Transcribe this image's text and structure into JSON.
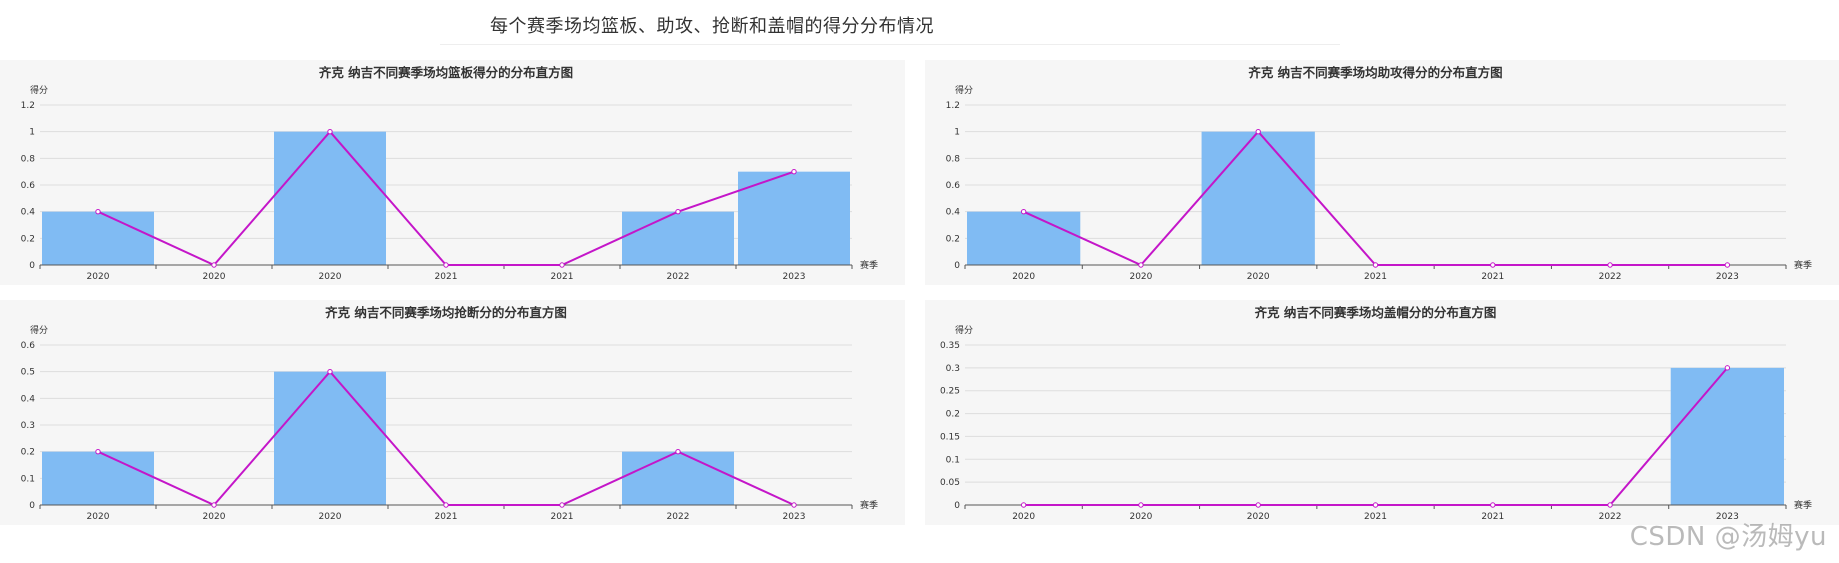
{
  "page": {
    "title": "每个赛季场均篮板、助攻、抢断和盖帽的得分分布情况"
  },
  "watermark": "CSDN @汤姆yu",
  "colors": {
    "bar": "#80bbf3",
    "line": "#c416c9",
    "axis": "#555555",
    "grid": "#dddddd"
  },
  "chart_data": [
    {
      "type": "bar",
      "title": "齐克 纳吉不同赛季场均篮板得分的分布直方图",
      "xlabel": "赛季",
      "ylabel": "得分",
      "categories": [
        "2020",
        "2020",
        "2020",
        "2021",
        "2021",
        "2022",
        "2023"
      ],
      "yticks": [
        "0",
        "0.2",
        "0.4",
        "0.6",
        "0.8",
        "1",
        "1.2"
      ],
      "ylim": [
        0,
        1.2
      ],
      "series": [
        {
          "type": "bar",
          "values": [
            0.4,
            0,
            1,
            0,
            0,
            0.4,
            0.7
          ]
        },
        {
          "type": "line",
          "values": [
            0.4,
            0,
            1,
            0,
            0,
            0.4,
            0.7
          ]
        }
      ]
    },
    {
      "type": "bar",
      "title": "齐克 纳吉不同赛季场均助攻得分的分布直方图",
      "xlabel": "赛季",
      "ylabel": "得分",
      "categories": [
        "2020",
        "2020",
        "2020",
        "2021",
        "2021",
        "2022",
        "2023"
      ],
      "yticks": [
        "0",
        "0.2",
        "0.4",
        "0.6",
        "0.8",
        "1",
        "1.2"
      ],
      "ylim": [
        0,
        1.2
      ],
      "series": [
        {
          "type": "bar",
          "values": [
            0.4,
            0,
            1,
            0,
            0,
            0,
            0
          ]
        },
        {
          "type": "line",
          "values": [
            0.4,
            0,
            1,
            0,
            0,
            0,
            0
          ]
        }
      ]
    },
    {
      "type": "bar",
      "title": "齐克 纳吉不同赛季场均抢断分的分布直方图",
      "xlabel": "赛季",
      "ylabel": "得分",
      "categories": [
        "2020",
        "2020",
        "2020",
        "2021",
        "2021",
        "2022",
        "2023"
      ],
      "yticks": [
        "0",
        "0.1",
        "0.2",
        "0.3",
        "0.4",
        "0.5",
        "0.6"
      ],
      "ylim": [
        0,
        0.6
      ],
      "series": [
        {
          "type": "bar",
          "values": [
            0.2,
            0,
            0.5,
            0,
            0,
            0.2,
            0
          ]
        },
        {
          "type": "line",
          "values": [
            0.2,
            0,
            0.5,
            0,
            0,
            0.2,
            0
          ]
        }
      ]
    },
    {
      "type": "bar",
      "title": "齐克 纳吉不同赛季场均盖帽分的分布直方图",
      "xlabel": "赛季",
      "ylabel": "得分",
      "categories": [
        "2020",
        "2020",
        "2020",
        "2021",
        "2021",
        "2022",
        "2023"
      ],
      "yticks": [
        "0",
        "0.05",
        "0.1",
        "0.15",
        "0.2",
        "0.25",
        "0.3",
        "0.35"
      ],
      "ylim": [
        0,
        0.35
      ],
      "series": [
        {
          "type": "bar",
          "values": [
            0,
            0,
            0,
            0,
            0,
            0,
            0.3
          ]
        },
        {
          "type": "line",
          "values": [
            0,
            0,
            0,
            0,
            0,
            0,
            0.3
          ]
        }
      ]
    }
  ]
}
